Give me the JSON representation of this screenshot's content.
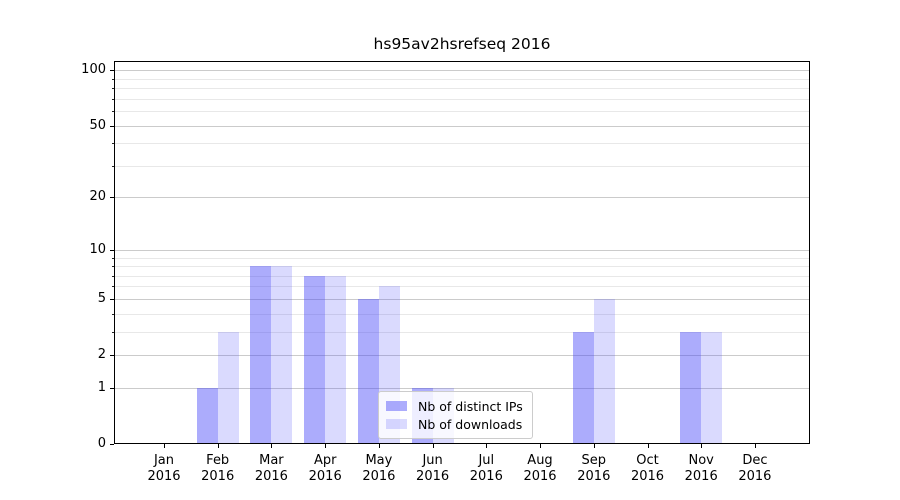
{
  "title": "hs95av2hsrefseq 2016",
  "chart_data": {
    "type": "bar",
    "title": "hs95av2hsrefseq 2016",
    "categories": [
      "Jan 2016",
      "Feb 2016",
      "Mar 2016",
      "Apr 2016",
      "May 2016",
      "Jun 2016",
      "Jul 2016",
      "Aug 2016",
      "Sep 2016",
      "Oct 2016",
      "Nov 2016",
      "Dec 2016"
    ],
    "series": [
      {
        "name": "Nb of distinct IPs",
        "color": "#4646f873",
        "values": [
          0,
          1,
          8,
          7,
          5,
          1,
          0,
          0,
          3,
          0,
          3,
          0
        ]
      },
      {
        "name": "Nb of downloads",
        "color": "#4646f833",
        "values": [
          0,
          3,
          8,
          7,
          6,
          1,
          0,
          0,
          5,
          0,
          3,
          0
        ]
      }
    ],
    "xlabel": "",
    "ylabel": "",
    "yscale": "log1p",
    "ylim": [
      0,
      112
    ],
    "y_major_ticks": [
      0,
      1,
      2,
      5,
      10,
      20,
      50,
      100
    ],
    "y_minor_ticks": [
      3,
      4,
      6,
      7,
      8,
      9,
      30,
      40,
      60,
      70,
      80,
      90
    ],
    "grid": "on",
    "legend_position": "lower center"
  },
  "colors": {
    "background": "#ffffff",
    "axis": "#000000",
    "grid_major": "#cbcbcb",
    "grid_minor": "#e8e8e8",
    "bar_distinct_ips": "#4646f873",
    "bar_downloads": "#4646f833",
    "legend_border": "#cccccc",
    "legend_background": "#ffffffcc",
    "text": "#000000"
  }
}
